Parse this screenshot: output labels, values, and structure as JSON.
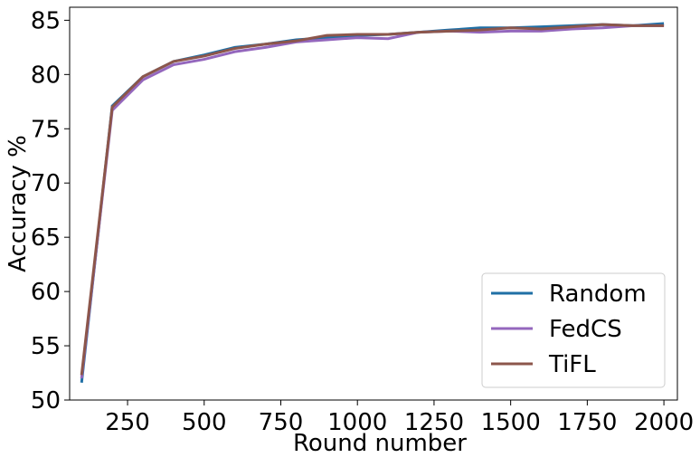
{
  "chart_data": {
    "type": "line",
    "x_label": "Round number",
    "y_label": "Accuracy %",
    "x": [
      100,
      200,
      300,
      400,
      500,
      600,
      700,
      800,
      900,
      1000,
      1100,
      1200,
      1300,
      1400,
      1500,
      1600,
      1700,
      1800,
      1900,
      2000
    ],
    "series": [
      {
        "name": "Random",
        "color": "#1f6fa5",
        "values": [
          51.6,
          77.1,
          79.8,
          81.2,
          81.8,
          82.5,
          82.8,
          83.2,
          83.4,
          83.6,
          83.7,
          83.9,
          84.1,
          84.3,
          84.3,
          84.4,
          84.5,
          84.6,
          84.5,
          84.7
        ]
      },
      {
        "name": "FedCS",
        "color": "#9467bd",
        "values": [
          52.0,
          76.7,
          79.5,
          80.9,
          81.4,
          82.1,
          82.5,
          83.0,
          83.2,
          83.4,
          83.3,
          83.9,
          84.0,
          83.9,
          84.0,
          84.0,
          84.2,
          84.3,
          84.5,
          84.5
        ]
      },
      {
        "name": "TiFL",
        "color": "#8c564b",
        "values": [
          52.3,
          77.0,
          79.8,
          81.2,
          81.7,
          82.4,
          82.8,
          83.1,
          83.6,
          83.7,
          83.7,
          83.9,
          84.0,
          84.1,
          84.3,
          84.2,
          84.4,
          84.6,
          84.5,
          84.5
        ]
      }
    ],
    "xlim": [
      61,
      2044
    ],
    "ylim": [
      50,
      86.2
    ],
    "xticks": [
      250,
      500,
      750,
      1000,
      1250,
      1500,
      1750,
      2000
    ],
    "yticks": [
      50,
      55,
      60,
      65,
      70,
      75,
      80,
      85
    ],
    "legend": "lower right"
  }
}
